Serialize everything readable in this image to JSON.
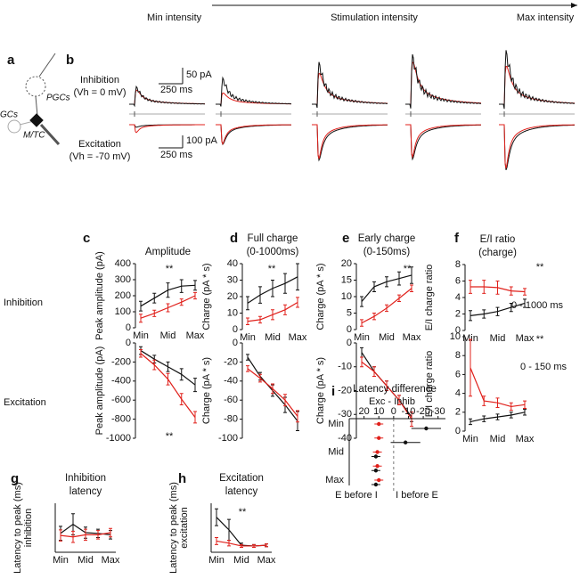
{
  "header": {
    "min": "Min intensity",
    "mid": "Stimulation intensity",
    "max": "Max intensity"
  },
  "panels": {
    "a": "a",
    "b": "b"
  },
  "schematic": {
    "pgcs": "PGCs",
    "gcs": "GCs",
    "mtc": "M/TC"
  },
  "traces": {
    "inhibition": "Inhibition",
    "inhibition_vh": "(Vh = 0 mV)",
    "excitation": "Excitation",
    "excitation_vh": "(Vh = -70 mV)",
    "inh_scale_y": "50 pA",
    "inh_scale_x": "250 ms",
    "exc_scale_y": "100 pA",
    "exc_scale_x": "250 ms"
  },
  "row_labels": [
    "Inhibition",
    "Excitation"
  ],
  "chart_data": [
    {
      "type": "line",
      "panel": "c",
      "title": "Amplitude",
      "ylabel": "Peak amplitude (pA)",
      "categories": [
        "Min",
        null,
        "Mid",
        null,
        "Max"
      ],
      "ylim": [
        0,
        400
      ],
      "yticks": [
        0,
        100,
        200,
        300,
        400
      ],
      "series": [
        {
          "color": "#111111",
          "values": [
            135,
            185,
            235,
            260,
            265
          ],
          "errors": [
            30,
            30,
            45,
            40,
            30
          ]
        },
        {
          "color": "#e0201b",
          "values": [
            60,
            90,
            125,
            160,
            200
          ],
          "errors": [
            25,
            20,
            25,
            20,
            20
          ]
        }
      ],
      "annotations": [
        "**"
      ]
    },
    {
      "type": "line",
      "ylabel": "Peak amplitude (pA)",
      "categories": [
        null,
        null,
        null,
        null,
        null
      ],
      "ylim": [
        -1000,
        0
      ],
      "yticks": [
        -1000,
        -800,
        -600,
        -400,
        -200,
        0
      ],
      "series": [
        {
          "color": "#111111",
          "values": [
            -80,
            -170,
            -250,
            -330,
            -440
          ],
          "errors": [
            40,
            40,
            50,
            60,
            70
          ]
        },
        {
          "color": "#e0201b",
          "values": [
            -110,
            -230,
            -380,
            -590,
            -780
          ],
          "errors": [
            40,
            50,
            60,
            60,
            60
          ]
        }
      ],
      "annotations": [
        "**"
      ]
    },
    {
      "type": "line",
      "panel": "d",
      "title": "Full charge",
      "subtitle": "(0-1000ms)",
      "ylabel": "Charge (pA * s)",
      "categories": [
        "Min",
        null,
        "Mid",
        null,
        "Max"
      ],
      "ylim": [
        0,
        40
      ],
      "yticks": [
        0,
        10,
        20,
        30,
        40
      ],
      "series": [
        {
          "color": "#111111",
          "values": [
            16,
            21,
            25,
            28,
            32
          ],
          "errors": [
            4,
            5,
            5,
            6,
            8
          ]
        },
        {
          "color": "#e0201b",
          "values": [
            5,
            6,
            9,
            12,
            16.5
          ],
          "errors": [
            2,
            2,
            3,
            3,
            3
          ]
        }
      ],
      "annotations": [
        "**"
      ]
    },
    {
      "type": "line",
      "ylabel": "Charge (pA * s)",
      "categories": [
        null,
        null,
        null,
        null,
        null
      ],
      "ylim": [
        -100,
        0
      ],
      "yticks": [
        -100,
        -80,
        -60,
        -40,
        -20,
        0
      ],
      "series": [
        {
          "color": "#111111",
          "values": [
            -15,
            -35,
            -50,
            -65,
            -82
          ],
          "errors": [
            3,
            4,
            6,
            8,
            10
          ]
        },
        {
          "color": "#e0201b",
          "values": [
            -27,
            -37,
            -48,
            -60,
            -77
          ],
          "errors": [
            3,
            4,
            5,
            6,
            6
          ]
        }
      ]
    },
    {
      "type": "line",
      "panel": "e",
      "title": "Early charge",
      "subtitle": "(0-150ms)",
      "ylabel": "Charge (pA * s)",
      "categories": [
        "Min",
        null,
        "Mid",
        null,
        "Max"
      ],
      "ylim": [
        0,
        20
      ],
      "yticks": [
        0,
        5,
        10,
        15,
        20
      ],
      "series": [
        {
          "color": "#111111",
          "values": [
            8.5,
            13,
            14.5,
            15.5,
            16.5
          ],
          "errors": [
            1.5,
            1.5,
            1.5,
            2,
            2.5
          ]
        },
        {
          "color": "#e0201b",
          "values": [
            2,
            4,
            6.5,
            9.5,
            12.5
          ],
          "errors": [
            1,
            1,
            1,
            1,
            1
          ]
        }
      ],
      "annotations": [
        "**"
      ]
    },
    {
      "type": "line",
      "ylabel": "Charge (pA * s)",
      "categories": [
        null,
        null,
        null,
        null,
        null
      ],
      "ylim": [
        -40,
        0
      ],
      "yticks": [
        -40,
        -30,
        -20,
        -10,
        0
      ],
      "series": [
        {
          "color": "#111111",
          "values": [
            -4,
            -12,
            -18,
            -24,
            -31
          ],
          "errors": [
            2,
            2,
            2,
            2,
            2
          ]
        },
        {
          "color": "#e0201b",
          "values": [
            -8,
            -12,
            -18,
            -24,
            -32
          ],
          "errors": [
            2,
            2,
            2,
            2,
            3
          ]
        }
      ]
    },
    {
      "type": "line",
      "panel": "f",
      "title": "E/I ratio",
      "subtitle": "(charge)",
      "ylabel": "E/I charge ratio",
      "categories": [
        "Min",
        null,
        "Mid",
        null,
        "Max"
      ],
      "ylim": [
        0,
        8
      ],
      "yticks": [
        0,
        2,
        4,
        6,
        8
      ],
      "series": [
        {
          "color": "#111111",
          "values": [
            1.8,
            2.0,
            2.3,
            2.8,
            3.3
          ],
          "errors": [
            0.6,
            0.5,
            0.5,
            0.5,
            0.5
          ]
        },
        {
          "color": "#e0201b",
          "values": [
            5.3,
            5.3,
            5.2,
            4.8,
            4.7
          ],
          "errors": [
            0.8,
            0.8,
            0.8,
            0.5,
            0.4
          ]
        }
      ],
      "annotations": [
        "**",
        "0 - 1000 ms"
      ]
    },
    {
      "type": "line",
      "ylabel": "E/I charge ratio",
      "categories": [
        "Min",
        null,
        "Mid",
        null,
        "Max"
      ],
      "ylim": [
        0,
        10
      ],
      "yticks": [
        0,
        2,
        4,
        6,
        8,
        10
      ],
      "series": [
        {
          "color": "#111111",
          "values": [
            1.0,
            1.3,
            1.5,
            1.7,
            2.0
          ],
          "errors": [
            0.3,
            0.3,
            0.3,
            0.3,
            0.3
          ]
        },
        {
          "color": "#e0201b",
          "values": [
            6.7,
            3.2,
            3.0,
            2.6,
            2.8
          ],
          "errors": [
            3,
            0.5,
            0.5,
            0.4,
            0.4
          ]
        }
      ],
      "annotations": [
        "**",
        "0 - 150 ms"
      ]
    },
    {
      "type": "line",
      "panel": "g",
      "title": "Inhibition",
      "subtitle": "latency",
      "ylabel": [
        "Latency to peak (ms)",
        "inhibition"
      ],
      "categories": [
        "Min",
        null,
        "Mid",
        null,
        "Max"
      ],
      "ylim": [
        0,
        70
      ],
      "series": [
        {
          "color": "#111111",
          "values": [
            27,
            40,
            28,
            27,
            25
          ],
          "errors": [
            10,
            15,
            8,
            6,
            6
          ]
        },
        {
          "color": "#e0201b",
          "values": [
            24,
            22,
            25,
            25,
            28
          ],
          "errors": [
            8,
            8,
            8,
            6,
            6
          ]
        }
      ]
    },
    {
      "type": "line",
      "panel": "h",
      "title": "Excitation",
      "subtitle": "latency",
      "ylabel": [
        "Latency to peak (ms)",
        "excitation"
      ],
      "categories": [
        "Min",
        null,
        "Mid",
        null,
        "Max"
      ],
      "ylim": [
        0,
        70
      ],
      "series": [
        {
          "color": "#111111",
          "values": [
            50,
            32,
            10,
            9,
            10
          ],
          "errors": [
            12,
            15,
            3,
            2,
            2
          ]
        },
        {
          "color": "#e0201b",
          "values": [
            16,
            13,
            9,
            9,
            10
          ],
          "errors": [
            5,
            4,
            2,
            2,
            2
          ]
        }
      ],
      "annotations": [
        "**"
      ]
    },
    {
      "type": "scatter",
      "panel": "i",
      "title": "Latency difference",
      "xlabel": "Exc - Inhib",
      "categories": [
        "Min",
        null,
        "Mid",
        null,
        "Max"
      ],
      "xlim": [
        30,
        -35
      ],
      "xticks": [
        20,
        10,
        0,
        -10,
        -20,
        -30
      ],
      "refline": 0,
      "series": [
        {
          "color": "#e0201b",
          "values": [
            10,
            10,
            11,
            11,
            10
          ],
          "errors": [
            3,
            3,
            3,
            3,
            3
          ]
        },
        {
          "color": "#111111",
          "values": [
            -22,
            -8,
            12,
            12,
            12
          ],
          "errors": [
            10,
            10,
            3,
            3,
            3
          ]
        }
      ],
      "annotations": [
        "E before I",
        "I before E"
      ]
    }
  ]
}
